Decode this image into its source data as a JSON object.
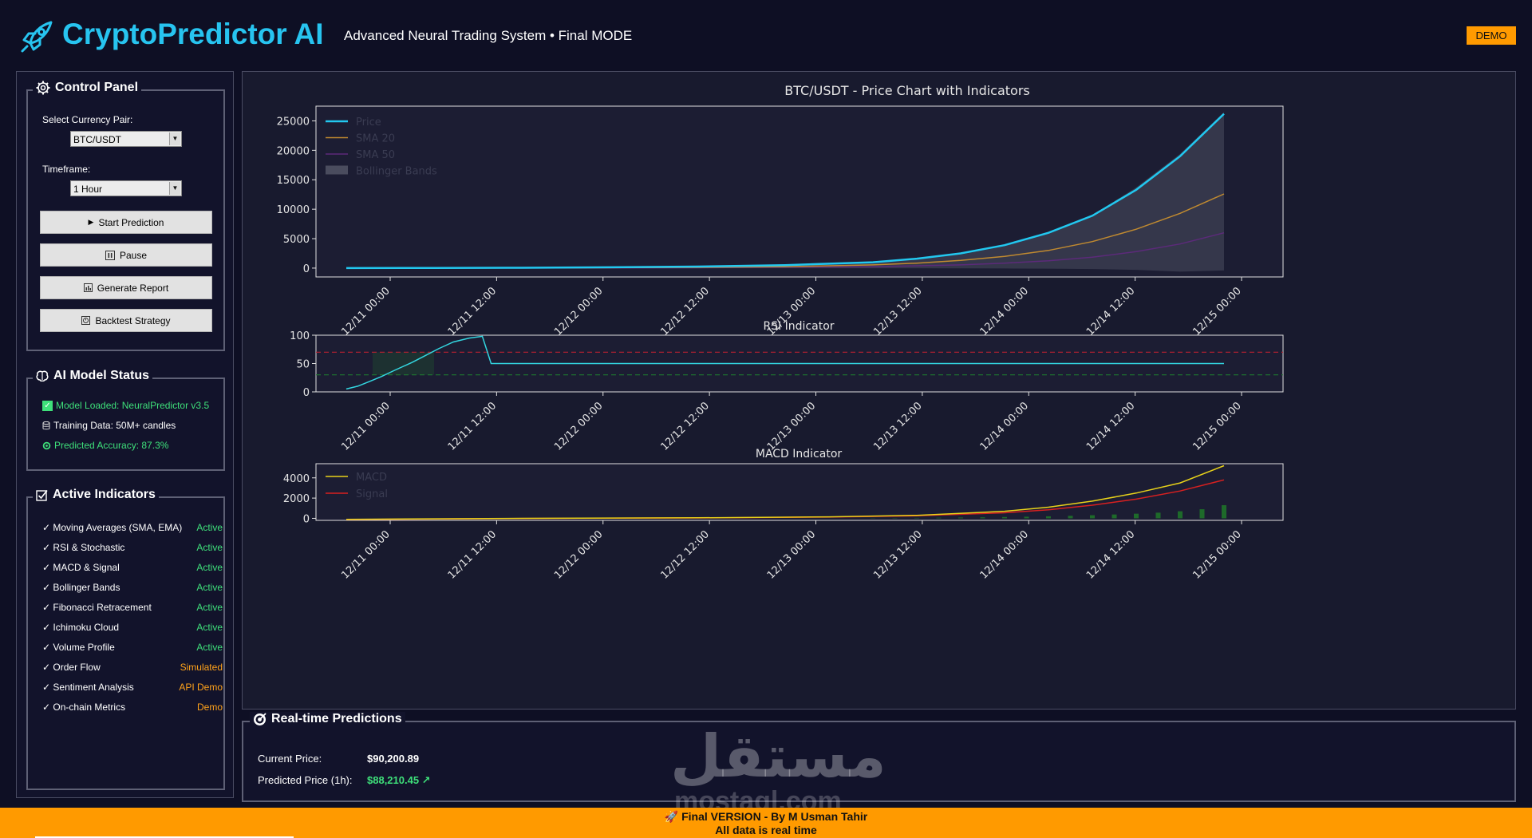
{
  "header": {
    "title": "CryptoPredictor AI",
    "subtitle": "Advanced Neural Trading System • Final MODE",
    "badge": "DEMO",
    "logo_icon": "rocket-icon",
    "accent": "#27c4f0",
    "badge_color": "#ff9a00"
  },
  "control_panel": {
    "title": "Control Panel",
    "icon": "gear-icon",
    "pair_label": "Select Currency Pair:",
    "pair_value": "BTC/USDT",
    "timeframe_label": "Timeframe:",
    "timeframe_value": "1 Hour",
    "buttons": {
      "start": {
        "icon": "play-icon",
        "label": "Start Prediction"
      },
      "pause": {
        "icon": "pause-icon",
        "label": "Pause"
      },
      "report": {
        "icon": "bar-chart-icon",
        "label": "Generate Report"
      },
      "backtest": {
        "icon": "history-icon",
        "label": "Backtest Strategy"
      }
    }
  },
  "model_status": {
    "title": "AI Model Status",
    "icon": "brain-icon",
    "lines": [
      {
        "icon": "check-box-icon",
        "text": "Model Loaded: NeuralPredictor v3.5",
        "color": "#3ee07a"
      },
      {
        "icon": "database-icon",
        "text": "Training Data: 50M+ candles",
        "color": "#ffffff"
      },
      {
        "icon": "target-icon",
        "text": "Predicted Accuracy: 87.3%",
        "color": "#3ee07a"
      }
    ]
  },
  "active_indicators": {
    "title": "Active Indicators",
    "icon": "checkbox-icon",
    "items": [
      {
        "name": "✓ Moving Averages (SMA, EMA)",
        "status": "Active",
        "color": "#3ee07a"
      },
      {
        "name": "✓ RSI & Stochastic",
        "status": "Active",
        "color": "#3ee07a"
      },
      {
        "name": "✓ MACD & Signal",
        "status": "Active",
        "color": "#3ee07a"
      },
      {
        "name": "✓ Bollinger Bands",
        "status": "Active",
        "color": "#3ee07a"
      },
      {
        "name": "✓ Fibonacci Retracement",
        "status": "Active",
        "color": "#3ee07a"
      },
      {
        "name": "✓ Ichimoku Cloud",
        "status": "Active",
        "color": "#3ee07a"
      },
      {
        "name": "✓ Volume Profile",
        "status": "Active",
        "color": "#3ee07a"
      },
      {
        "name": "✓ Order Flow",
        "status": "Simulated",
        "color": "#ffa21a"
      },
      {
        "name": "✓ Sentiment Analysis",
        "status": "API Demo",
        "color": "#ffa21a"
      },
      {
        "name": "✓ On-chain Metrics",
        "status": "Demo",
        "color": "#ffa21a"
      }
    ]
  },
  "predictions": {
    "title": "Real-time Predictions",
    "icon": "target-icon",
    "current_label": "Current Price:",
    "current_value": "$90,200.89",
    "predicted_label": "Predicted Price (1h):",
    "predicted_value": "$88,210.45 ↗",
    "predicted_color": "#3ee07a"
  },
  "watermark": {
    "text": "مستقل",
    "sub": "mostaql.com"
  },
  "footer": {
    "line1": "🚀 Final VERSION - By M Usman Tahir",
    "line2": "All data is real time"
  },
  "chart_data": [
    {
      "type": "line",
      "title": "BTC/USDT - Price Chart with Indicators",
      "x_ticks": [
        "12/11 00:00",
        "12/11 12:00",
        "12/12 00:00",
        "12/12 12:00",
        "12/13 00:00",
        "12/13 12:00",
        "12/14 00:00",
        "12/14 12:00",
        "12/15 00:00"
      ],
      "x_range": [
        "12/10 20:00",
        "12/15 00:00"
      ],
      "ylim": [
        -1500,
        27500
      ],
      "y_ticks": [
        0,
        5000,
        10000,
        15000,
        20000,
        25000
      ],
      "legend": [
        "Price",
        "SMA 20",
        "SMA 50",
        "Bollinger Bands"
      ],
      "legend_position": "top-left",
      "series": [
        {
          "name": "Price",
          "color": "#22c8f0",
          "x": [
            0,
            10,
            20,
            30,
            40,
            50,
            60,
            65,
            70,
            75,
            80,
            85,
            90,
            95,
            100
          ],
          "values": [
            0,
            30,
            60,
            140,
            260,
            500,
            1000,
            1600,
            2500,
            3900,
            6000,
            8900,
            13300,
            19000,
            26200
          ]
        },
        {
          "name": "SMA 20",
          "color": "#c08a30",
          "x": [
            0,
            20,
            40,
            50,
            60,
            65,
            70,
            75,
            80,
            85,
            90,
            95,
            100
          ],
          "values": [
            0,
            20,
            120,
            250,
            550,
            850,
            1300,
            2000,
            3000,
            4500,
            6600,
            9300,
            12600
          ]
        },
        {
          "name": "SMA 50",
          "color": "#5c2a7a",
          "x": [
            0,
            20,
            40,
            60,
            70,
            75,
            80,
            85,
            90,
            95,
            100
          ],
          "values": [
            0,
            10,
            60,
            250,
            550,
            850,
            1250,
            1850,
            2800,
            4100,
            6000
          ]
        },
        {
          "name": "Bollinger Bands",
          "color": "#4a4c5e",
          "x": [
            0,
            20,
            40,
            60,
            70,
            75,
            80,
            85,
            90,
            95,
            100
          ],
          "upper": [
            0,
            40,
            220,
            1000,
            2300,
            3700,
            5900,
            9000,
            13700,
            19400,
            26500
          ],
          "lower": [
            0,
            0,
            -10,
            -20,
            -40,
            -60,
            -90,
            -160,
            -300,
            -600,
            -400
          ]
        }
      ]
    },
    {
      "type": "line",
      "title": "RSI Indicator",
      "x_ticks": [
        "12/11 00:00",
        "12/11 12:00",
        "12/12 00:00",
        "12/12 12:00",
        "12/13 00:00",
        "12/13 12:00",
        "12/14 00:00",
        "12/14 12:00",
        "12/15 00:00"
      ],
      "ylim": [
        0,
        100
      ],
      "y_ticks": [
        0,
        50,
        100
      ],
      "thresholds": [
        {
          "value": 70,
          "color": "#b82030"
        },
        {
          "value": 30,
          "color": "#1f7a2f"
        }
      ],
      "series": [
        {
          "name": "RSI",
          "color": "#33d6e0",
          "x": [
            0,
            1.3,
            2.6,
            4,
            5.5,
            7.5,
            9,
            10.5,
            12.2,
            14,
            15.5,
            16.5,
            25,
            50,
            75,
            100
          ],
          "values": [
            5,
            10,
            18,
            27,
            38,
            52,
            64,
            76,
            88,
            95,
            98,
            50,
            50,
            50,
            50,
            50
          ]
        }
      ]
    },
    {
      "type": "line",
      "title": "MACD Indicator",
      "x_ticks": [
        "12/11 00:00",
        "12/11 12:00",
        "12/12 00:00",
        "12/12 12:00",
        "12/13 00:00",
        "12/13 12:00",
        "12/14 00:00",
        "12/14 12:00",
        "12/15 00:00"
      ],
      "ylim": [
        -200,
        5400
      ],
      "y_ticks": [
        0,
        2000,
        4000
      ],
      "legend": [
        "MACD",
        "Signal"
      ],
      "legend_position": "top-left",
      "series": [
        {
          "name": "MACD",
          "color": "#e8d21a",
          "x": [
            0,
            20,
            40,
            55,
            65,
            75,
            80,
            85,
            90,
            95,
            100
          ],
          "values": [
            -100,
            0,
            50,
            150,
            300,
            700,
            1100,
            1700,
            2500,
            3500,
            5200
          ]
        },
        {
          "name": "Signal",
          "color": "#d82020",
          "x": [
            0,
            20,
            40,
            55,
            65,
            75,
            80,
            85,
            90,
            95,
            100
          ],
          "values": [
            -120,
            -10,
            40,
            120,
            250,
            550,
            850,
            1300,
            1900,
            2700,
            3800
          ]
        },
        {
          "name": "Histogram",
          "color": "#1e6a2a",
          "x": [
            60,
            62.5,
            65,
            67.5,
            70,
            72.5,
            75,
            77.5,
            80,
            82.5,
            85,
            87.5,
            90,
            92.5,
            95,
            97.5,
            100
          ],
          "values": [
            20,
            30,
            40,
            60,
            80,
            100,
            130,
            160,
            200,
            250,
            310,
            380,
            460,
            560,
            700,
            900,
            1300
          ]
        }
      ]
    }
  ]
}
